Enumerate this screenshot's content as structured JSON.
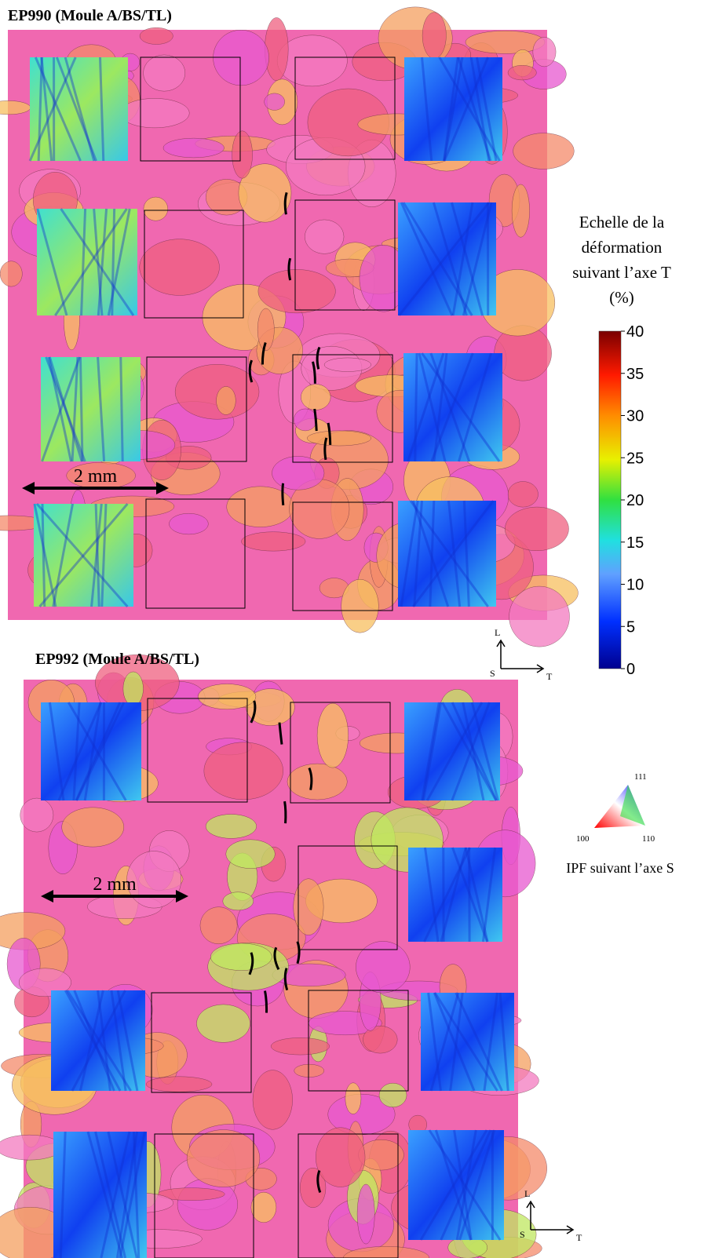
{
  "panels": [
    {
      "title": "EP990 (Moule A/BS/TL)",
      "scale_bar": "2 mm",
      "axis_labels": [
        "L",
        "S",
        "T"
      ]
    },
    {
      "title": "EP992 (Moule A/BS/TL)",
      "scale_bar": "2 mm",
      "axis_labels": [
        "L",
        "S",
        "T"
      ]
    }
  ],
  "colorbar": {
    "title": [
      "Echelle de la",
      "déformation",
      "suivant l’axe T",
      "(%)"
    ],
    "lim": [
      0,
      40
    ],
    "ticks": [
      0,
      5,
      10,
      15,
      20,
      25,
      30,
      35,
      40
    ]
  },
  "ipf": {
    "corners": [
      "111",
      "100",
      "110"
    ],
    "label": "IPF suivant l’axe S"
  }
}
